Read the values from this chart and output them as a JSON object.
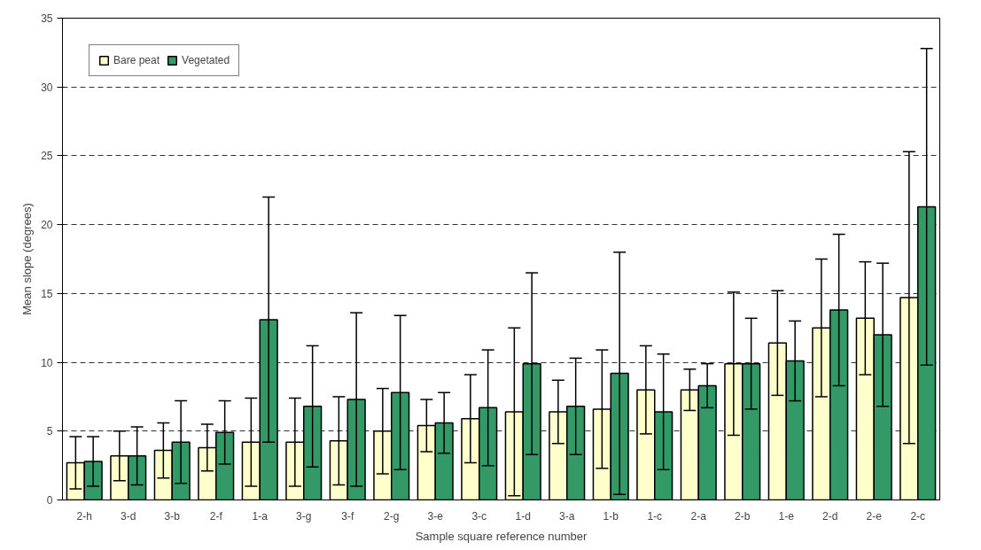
{
  "chart_data": {
    "type": "bar",
    "xlabel": "Sample square reference number",
    "ylabel": "Mean slope (degrees)",
    "categories": [
      "2-h",
      "3-d",
      "3-b",
      "2-f",
      "1-a",
      "3-g",
      "3-f",
      "2-g",
      "3-e",
      "3-c",
      "1-d",
      "3-a",
      "1-b",
      "1-c",
      "2-a",
      "2-b",
      "1-e",
      "2-d",
      "2-e",
      "2-c"
    ],
    "series": [
      {
        "name": "Bare peat",
        "color": "#ffffcc",
        "values": [
          2.7,
          3.2,
          3.6,
          3.8,
          4.2,
          4.2,
          4.3,
          5.0,
          5.4,
          5.9,
          6.4,
          6.4,
          6.6,
          8.0,
          8.0,
          9.9,
          11.4,
          12.5,
          13.2,
          14.7
        ],
        "errors": [
          1.9,
          1.8,
          2.0,
          1.7,
          3.2,
          3.2,
          3.2,
          3.1,
          1.9,
          3.2,
          6.1,
          2.3,
          4.3,
          3.2,
          1.5,
          5.2,
          3.8,
          5.0,
          4.1,
          10.6
        ]
      },
      {
        "name": "Vegetated",
        "color": "#339966",
        "values": [
          2.8,
          3.2,
          4.2,
          4.9,
          13.1,
          6.8,
          7.3,
          7.8,
          5.6,
          6.7,
          9.9,
          6.8,
          9.2,
          6.4,
          8.3,
          9.9,
          10.1,
          13.8,
          12.0,
          21.3
        ],
        "errors": [
          1.8,
          2.1,
          3.0,
          2.3,
          8.9,
          4.4,
          6.3,
          5.6,
          2.2,
          4.2,
          6.6,
          3.5,
          8.8,
          4.2,
          1.6,
          3.3,
          2.9,
          5.5,
          5.2,
          11.5
        ]
      }
    ],
    "ylim": [
      0,
      35
    ],
    "yticks": [
      0,
      5,
      10,
      15,
      20,
      25,
      30,
      35
    ],
    "grid": "y",
    "legend": "top left"
  }
}
